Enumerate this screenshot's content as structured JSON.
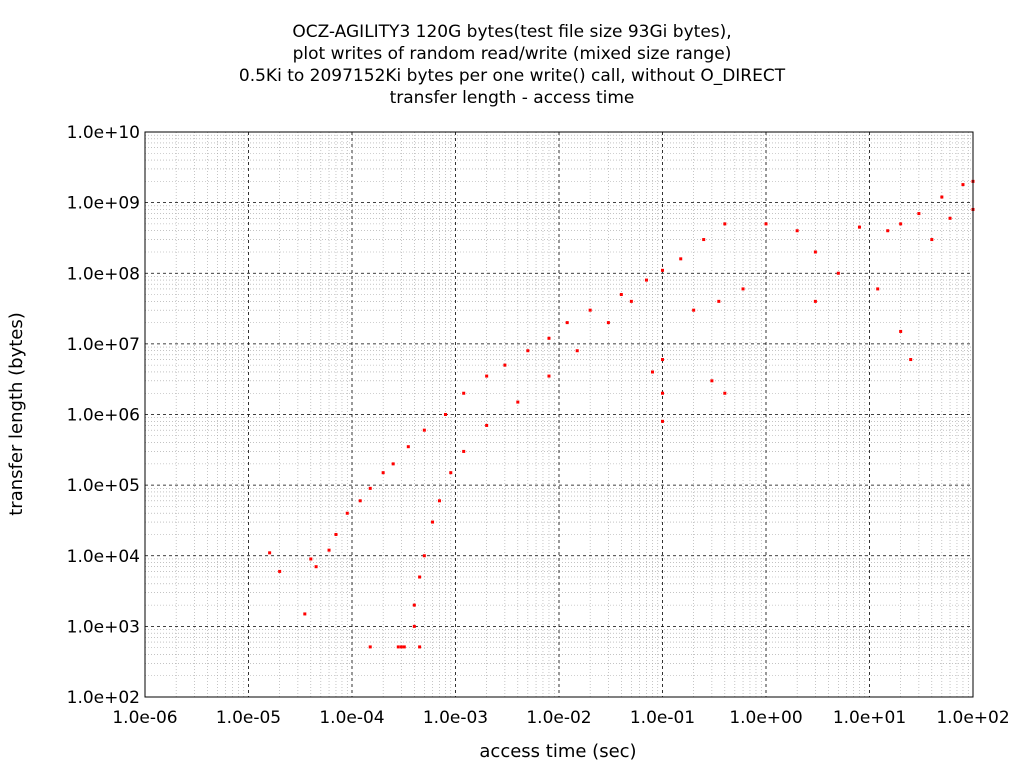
{
  "chart_data": {
    "type": "scatter",
    "title_lines": [
      "OCZ-AGILITY3 120G bytes(test file size 93Gi bytes),",
      "plot writes of random read/write (mixed size range)",
      "0.5Ki to 2097152Ki bytes per one write() call, without O_DIRECT",
      "transfer length - access time"
    ],
    "xlabel": "access time (sec)",
    "ylabel": "transfer length (bytes)",
    "x_scale": "log",
    "y_scale": "log",
    "xlim": [
      1e-06,
      100
    ],
    "ylim": [
      100,
      10000000000.0
    ],
    "x_ticks": [
      "1.0e-06",
      "1.0e-05",
      "1.0e-04",
      "1.0e-03",
      "1.0e-02",
      "1.0e-01",
      "1.0e+00",
      "1.0e+01",
      "1.0e+02"
    ],
    "y_ticks": [
      "1.0e+02",
      "1.0e+03",
      "1.0e+04",
      "1.0e+05",
      "1.0e+06",
      "1.0e+07",
      "1.0e+08",
      "1.0e+09",
      "1.0e+10"
    ],
    "grid": true,
    "minor_grid": true,
    "point_color": "#ff0000",
    "series": [
      {
        "points": [
          [
            0.00015,
            512
          ],
          [
            0.00028,
            512
          ],
          [
            0.0003,
            512
          ],
          [
            0.00032,
            512
          ],
          [
            0.00045,
            512
          ],
          [
            3.5e-05,
            1500
          ],
          [
            2e-05,
            6000
          ],
          [
            4.5e-05,
            7000
          ],
          [
            1.6e-05,
            11000
          ],
          [
            4e-05,
            9000
          ],
          [
            6e-05,
            12000
          ],
          [
            7e-05,
            20000
          ],
          [
            9e-05,
            40000
          ],
          [
            0.00012,
            60000
          ],
          [
            0.00015,
            90000
          ],
          [
            0.0002,
            150000
          ],
          [
            0.00025,
            200000
          ],
          [
            0.00035,
            350000
          ],
          [
            0.0005,
            600000
          ],
          [
            0.0008,
            1000000
          ],
          [
            0.0012,
            2000000
          ],
          [
            0.002,
            3500000
          ],
          [
            0.003,
            5000000
          ],
          [
            0.005,
            8000000
          ],
          [
            0.008,
            12000000
          ],
          [
            0.012,
            20000000
          ],
          [
            0.02,
            30000000
          ],
          [
            0.04,
            50000000
          ],
          [
            0.07,
            80000000
          ],
          [
            0.1,
            110000000
          ],
          [
            0.15,
            160000000
          ],
          [
            0.25,
            300000000
          ],
          [
            0.4,
            500000000
          ],
          [
            0.0004,
            1000
          ],
          [
            0.0004,
            2000
          ],
          [
            0.00045,
            5000
          ],
          [
            0.0005,
            10000
          ],
          [
            0.0006,
            30000
          ],
          [
            0.0007,
            60000
          ],
          [
            0.0009,
            150000
          ],
          [
            0.0012,
            300000
          ],
          [
            0.002,
            700000
          ],
          [
            0.004,
            1500000
          ],
          [
            0.008,
            3500000
          ],
          [
            0.015,
            8000000
          ],
          [
            0.03,
            20000000
          ],
          [
            0.05,
            40000000
          ],
          [
            0.1,
            6000000
          ],
          [
            0.1,
            2000000
          ],
          [
            0.1,
            800000
          ],
          [
            0.08,
            4000000
          ],
          [
            0.3,
            3000000
          ],
          [
            0.4,
            2000000
          ],
          [
            0.2,
            30000000
          ],
          [
            0.35,
            40000000
          ],
          [
            0.6,
            60000000
          ],
          [
            1.0,
            500000000
          ],
          [
            2.0,
            400000000
          ],
          [
            3.0,
            200000000
          ],
          [
            5.0,
            100000000
          ],
          [
            8.0,
            450000000
          ],
          [
            15.0,
            400000000
          ],
          [
            20.0,
            500000000
          ],
          [
            30.0,
            700000000
          ],
          [
            50.0,
            1200000000
          ],
          [
            80.0,
            1800000000
          ],
          [
            100.0,
            2000000000
          ],
          [
            100.0,
            800000000
          ],
          [
            60.0,
            600000000
          ],
          [
            40.0,
            300000000
          ],
          [
            20.0,
            15000000
          ],
          [
            25.0,
            6000000
          ],
          [
            12.0,
            60000000
          ],
          [
            3.0,
            40000000
          ]
        ]
      }
    ]
  }
}
